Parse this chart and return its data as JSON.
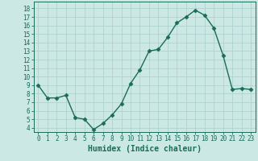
{
  "x": [
    0,
    1,
    2,
    3,
    4,
    5,
    6,
    7,
    8,
    9,
    10,
    11,
    12,
    13,
    14,
    15,
    16,
    17,
    18,
    19,
    20,
    21,
    22,
    23
  ],
  "y": [
    9.0,
    7.5,
    7.5,
    7.8,
    5.2,
    5.0,
    3.8,
    4.5,
    5.5,
    6.8,
    9.2,
    10.8,
    13.0,
    13.2,
    14.6,
    16.3,
    17.0,
    17.8,
    17.2,
    15.7,
    12.5,
    8.5,
    8.6,
    8.5
  ],
  "line_color": "#1a6b5a",
  "bg_color": "#cce8e4",
  "grid_color": "#aacfcc",
  "xlabel": "Humidex (Indice chaleur)",
  "ylim": [
    3.5,
    18.8
  ],
  "xlim": [
    -0.5,
    23.5
  ],
  "yticks": [
    4,
    5,
    6,
    7,
    8,
    9,
    10,
    11,
    12,
    13,
    14,
    15,
    16,
    17,
    18
  ],
  "xticks": [
    0,
    1,
    2,
    3,
    4,
    5,
    6,
    7,
    8,
    9,
    10,
    11,
    12,
    13,
    14,
    15,
    16,
    17,
    18,
    19,
    20,
    21,
    22,
    23
  ],
  "tick_color": "#1a6b5a",
  "xlabel_fontsize": 7,
  "tick_fontsize": 5.5,
  "marker_size": 2.5,
  "line_width": 1.0
}
